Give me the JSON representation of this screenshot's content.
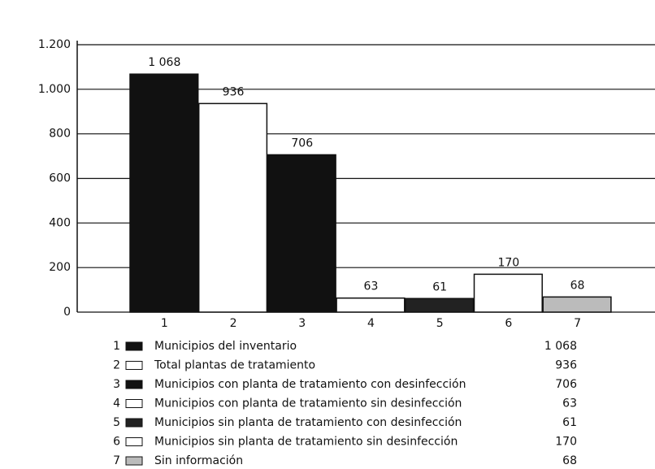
{
  "chart_data": {
    "type": "bar",
    "categories": [
      "1",
      "2",
      "3",
      "4",
      "5",
      "6",
      "7"
    ],
    "values": [
      1068,
      936,
      706,
      63,
      61,
      170,
      68
    ],
    "value_labels": [
      "1 068",
      "936",
      "706",
      "63",
      "61",
      "170",
      "68"
    ],
    "labels": [
      "Municipios del inventario",
      "Total plantas de tratamiento",
      "Municipios con planta de tratamiento con desinfección",
      "Municipios con planta de tratamiento sin desinfección",
      "Municipios sin planta de tratamiento con desinfección",
      "Municipios sin planta de tratamiento sin desinfección",
      "Sin información"
    ],
    "colors": [
      "#111111",
      "#ffffff",
      "#111111",
      "#ffffff",
      "#222222",
      "#ffffff",
      "#bbbbbb"
    ],
    "ylim": [
      0,
      1200
    ],
    "yticks": [
      0,
      200,
      400,
      600,
      800,
      {
        "value": 1000,
        "label": "1.000"
      },
      {
        "value": 1200,
        "label": "1.200"
      }
    ],
    "grid": true
  }
}
